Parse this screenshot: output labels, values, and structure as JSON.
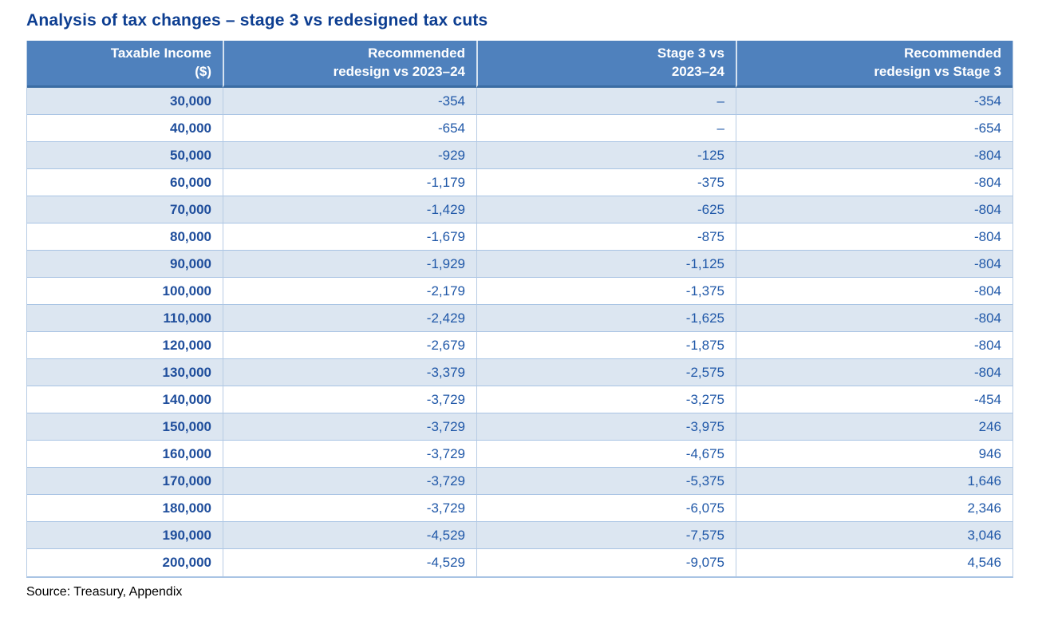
{
  "title": "Analysis of tax changes – stage 3 vs redesigned tax cuts",
  "source": "Source: Treasury, Appendix",
  "colors": {
    "title_text": "#0d3e91",
    "header_bg": "#4f81bd",
    "header_text": "#ffffff",
    "header_bottom_border": "#3a6ca3",
    "row_alt_bg": "#dce6f1",
    "row_bg": "#ffffff",
    "grid_line": "#a9c4e4",
    "income_text": "#1f4e9c",
    "value_text": "#2058a8",
    "source_text": "#000000"
  },
  "chart_data": {
    "type": "table",
    "title": "Analysis of tax changes – stage 3 vs redesigned tax cuts",
    "columns": [
      "Taxable Income ($)",
      "Recommended redesign vs 2023–24",
      "Stage 3 vs 2023–24",
      "Recommended redesign vs Stage 3"
    ],
    "header_lines": [
      [
        "Taxable Income",
        "($)"
      ],
      [
        "Recommended",
        "redesign vs 2023–24"
      ],
      [
        "Stage 3 vs",
        "2023–24"
      ],
      [
        "Recommended",
        "redesign vs Stage 3"
      ]
    ],
    "rows": [
      [
        "30,000",
        "-354",
        "–",
        "-354"
      ],
      [
        "40,000",
        "-654",
        "–",
        "-654"
      ],
      [
        "50,000",
        "-929",
        "-125",
        "-804"
      ],
      [
        "60,000",
        "-1,179",
        "-375",
        "-804"
      ],
      [
        "70,000",
        "-1,429",
        "-625",
        "-804"
      ],
      [
        "80,000",
        "-1,679",
        "-875",
        "-804"
      ],
      [
        "90,000",
        "-1,929",
        "-1,125",
        "-804"
      ],
      [
        "100,000",
        "-2,179",
        "-1,375",
        "-804"
      ],
      [
        "110,000",
        "-2,429",
        "-1,625",
        "-804"
      ],
      [
        "120,000",
        "-2,679",
        "-1,875",
        "-804"
      ],
      [
        "130,000",
        "-3,379",
        "-2,575",
        "-804"
      ],
      [
        "140,000",
        "-3,729",
        "-3,275",
        "-454"
      ],
      [
        "150,000",
        "-3,729",
        "-3,975",
        "246"
      ],
      [
        "160,000",
        "-3,729",
        "-4,675",
        "946"
      ],
      [
        "170,000",
        "-3,729",
        "-5,375",
        "1,646"
      ],
      [
        "180,000",
        "-3,729",
        "-6,075",
        "2,346"
      ],
      [
        "190,000",
        "-4,529",
        "-7,575",
        "3,046"
      ],
      [
        "200,000",
        "-4,529",
        "-9,075",
        "4,546"
      ]
    ],
    "source": "Source: Treasury, Appendix"
  }
}
